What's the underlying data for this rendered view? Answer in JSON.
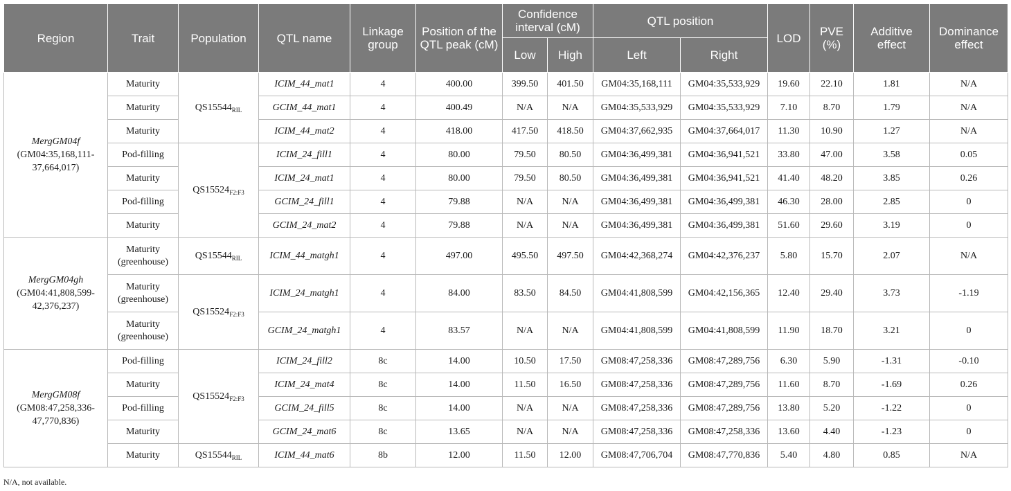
{
  "headers": {
    "region": "Region",
    "trait": "Trait",
    "population": "Population",
    "qtl_name": "QTL name",
    "linkage_group": "Linkage group",
    "peak": "Position of the QTL peak (cM)",
    "ci": "Confidence interval (cM)",
    "ci_low": "Low",
    "ci_high": "High",
    "qtl_pos": "QTL position",
    "left": "Left",
    "right": "Right",
    "lod": "LOD",
    "pve": "PVE (%)",
    "additive": "Additive effect",
    "dominance": "Dominance effect"
  },
  "regions": [
    {
      "name": "MergGM04f",
      "range": "(GM04:35,168,111-37,664,017)"
    },
    {
      "name": "MergGM04gh",
      "range": "(GM04:41,808,599-42,376,237)"
    },
    {
      "name": "MergGM08f",
      "range": "(GM08:47,258,336-47,770,836)"
    }
  ],
  "populations": [
    {
      "base": "QS15544",
      "sub": "RIL"
    },
    {
      "base": "QS15524",
      "sub": "F2:F3"
    },
    {
      "base": "QS15544",
      "sub": "RIL"
    },
    {
      "base": "QS15524",
      "sub": "F2:F3"
    },
    {
      "base": "QS15524",
      "sub": "F2:F3"
    },
    {
      "base": "QS15544",
      "sub": "RIL"
    }
  ],
  "rows": [
    {
      "trait": "Maturity",
      "qtl": "ICIM_44_mat1",
      "lg": "4",
      "peak": "400.00",
      "low": "399.50",
      "high": "401.50",
      "left": "GM04:35,168,111",
      "right": "GM04:35,533,929",
      "lod": "19.60",
      "pve": "22.10",
      "add": "1.81",
      "dom": "N/A"
    },
    {
      "trait": "Maturity",
      "qtl": "GCIM_44_mat1",
      "lg": "4",
      "peak": "400.49",
      "low": "N/A",
      "high": "N/A",
      "left": "GM04:35,533,929",
      "right": "GM04:35,533,929",
      "lod": "7.10",
      "pve": "8.70",
      "add": "1.79",
      "dom": "N/A"
    },
    {
      "trait": "Maturity",
      "qtl": "ICIM_44_mat2",
      "lg": "4",
      "peak": "418.00",
      "low": "417.50",
      "high": "418.50",
      "left": "GM04:37,662,935",
      "right": "GM04:37,664,017",
      "lod": "11.30",
      "pve": "10.90",
      "add": "1.27",
      "dom": "N/A"
    },
    {
      "trait": "Pod-filling",
      "qtl": "ICIM_24_fill1",
      "lg": "4",
      "peak": "80.00",
      "low": "79.50",
      "high": "80.50",
      "left": "GM04:36,499,381",
      "right": "GM04:36,941,521",
      "lod": "33.80",
      "pve": "47.00",
      "add": "3.58",
      "dom": "0.05"
    },
    {
      "trait": "Maturity",
      "qtl": "ICIM_24_mat1",
      "lg": "4",
      "peak": "80.00",
      "low": "79.50",
      "high": "80.50",
      "left": "GM04:36,499,381",
      "right": "GM04:36,941,521",
      "lod": "41.40",
      "pve": "48.20",
      "add": "3.85",
      "dom": "0.26"
    },
    {
      "trait": "Pod-filling",
      "qtl": "GCIM_24_fill1",
      "lg": "4",
      "peak": "79.88",
      "low": "N/A",
      "high": "N/A",
      "left": "GM04:36,499,381",
      "right": "GM04:36,499,381",
      "lod": "46.30",
      "pve": "28.00",
      "add": "2.85",
      "dom": "0"
    },
    {
      "trait": "Maturity",
      "qtl": "GCIM_24_mat2",
      "lg": "4",
      "peak": "79.88",
      "low": "N/A",
      "high": "N/A",
      "left": "GM04:36,499,381",
      "right": "GM04:36,499,381",
      "lod": "51.60",
      "pve": "29.60",
      "add": "3.19",
      "dom": "0"
    },
    {
      "trait": "Maturity (greenhouse)",
      "qtl": "ICIM_44_matgh1",
      "lg": "4",
      "peak": "497.00",
      "low": "495.50",
      "high": "497.50",
      "left": "GM04:42,368,274",
      "right": "GM04:42,376,237",
      "lod": "5.80",
      "pve": "15.70",
      "add": "2.07",
      "dom": "N/A"
    },
    {
      "trait": "Maturity (greenhouse)",
      "qtl": "ICIM_24_matgh1",
      "lg": "4",
      "peak": "84.00",
      "low": "83.50",
      "high": "84.50",
      "left": "GM04:41,808,599",
      "right": "GM04:42,156,365",
      "lod": "12.40",
      "pve": "29.40",
      "add": "3.73",
      "dom": "-1.19"
    },
    {
      "trait": "Maturity (greenhouse)",
      "qtl": "GCIM_24_matgh1",
      "lg": "4",
      "peak": "83.57",
      "low": "N/A",
      "high": "N/A",
      "left": "GM04:41,808,599",
      "right": "GM04:41,808,599",
      "lod": "11.90",
      "pve": "18.70",
      "add": "3.21",
      "dom": "0"
    },
    {
      "trait": "Pod-filling",
      "qtl": "ICIM_24_fill2",
      "lg": "8c",
      "peak": "14.00",
      "low": "10.50",
      "high": "17.50",
      "left": "GM08:47,258,336",
      "right": "GM08:47,289,756",
      "lod": "6.30",
      "pve": "5.90",
      "add": "-1.31",
      "dom": "-0.10"
    },
    {
      "trait": "Maturity",
      "qtl": "ICIM_24_mat4",
      "lg": "8c",
      "peak": "14.00",
      "low": "11.50",
      "high": "16.50",
      "left": "GM08:47,258,336",
      "right": "GM08:47,289,756",
      "lod": "11.60",
      "pve": "8.70",
      "add": "-1.69",
      "dom": "0.26"
    },
    {
      "trait": "Pod-filling",
      "qtl": "GCIM_24_fill5",
      "lg": "8c",
      "peak": "14.00",
      "low": "N/A",
      "high": "N/A",
      "left": "GM08:47,258,336",
      "right": "GM08:47,289,756",
      "lod": "13.80",
      "pve": "5.20",
      "add": "-1.22",
      "dom": "0"
    },
    {
      "trait": "Maturity",
      "qtl": "GCIM_24_mat6",
      "lg": "8c",
      "peak": "13.65",
      "low": "N/A",
      "high": "N/A",
      "left": "GM08:47,258,336",
      "right": "GM08:47,258,336",
      "lod": "13.60",
      "pve": "4.40",
      "add": "-1.23",
      "dom": "0"
    },
    {
      "trait": "Maturity",
      "qtl": "ICIM_44_mat6",
      "lg": "8b",
      "peak": "12.00",
      "low": "11.50",
      "high": "12.00",
      "left": "GM08:47,706,704",
      "right": "GM08:47,770,836",
      "lod": "5.40",
      "pve": "4.80",
      "add": "0.85",
      "dom": "N/A"
    }
  ],
  "footnote": "N/A, not available."
}
